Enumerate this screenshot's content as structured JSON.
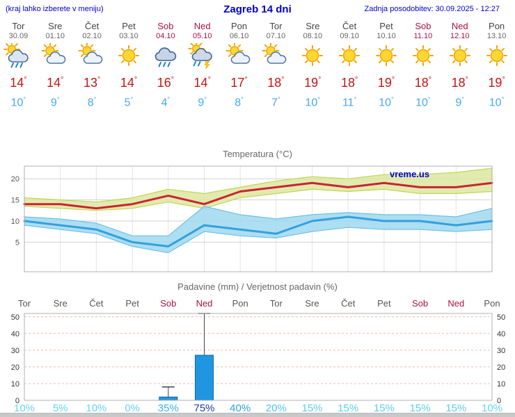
{
  "header": {
    "menu_note": "(kraj lahko izberete v meniju)",
    "title": "Zagreb 14 dni",
    "last_update": "Zadnja posodobitev: 30.09.2025 - 12:27"
  },
  "degree_symbol": "°",
  "colors": {
    "link_blue": "#0000cc",
    "weekday_text": "#555555",
    "weekend_red": "#aa1144",
    "high_temp_red": "#cc1111",
    "low_temp_blue": "#44a8f5",
    "max_line": "#cc2233",
    "min_line": "#33a0e0",
    "max_band_fill": "#dde8a0",
    "max_band_edge": "#c3d455",
    "min_band_fill": "#9fd8f0",
    "min_band_edge": "#6bc0e8",
    "bar_fill": "#2196e0",
    "bar_stroke": "#1565a8",
    "grid_pink": "#f0b6b6"
  },
  "days": [
    {
      "name": "Tor",
      "date": "30.09",
      "weekend": false,
      "icon": "cloud-rain-sun",
      "high": 14,
      "low": 10
    },
    {
      "name": "Sre",
      "date": "01.10",
      "weekend": false,
      "icon": "sun-cloud",
      "high": 14,
      "low": 9
    },
    {
      "name": "Čet",
      "date": "02.10",
      "weekend": false,
      "icon": "sun-cloud",
      "high": 13,
      "low": 8
    },
    {
      "name": "Pet",
      "date": "03.10",
      "weekend": false,
      "icon": "sunny",
      "high": 14,
      "low": 5
    },
    {
      "name": "Sob",
      "date": "04.10",
      "weekend": true,
      "icon": "cloud-rain",
      "high": 16,
      "low": 4
    },
    {
      "name": "Ned",
      "date": "05.10",
      "weekend": true,
      "icon": "cloud-rain-lightning-sun",
      "high": 14,
      "low": 9
    },
    {
      "name": "Pon",
      "date": "06.10",
      "weekend": false,
      "icon": "sun-cloud",
      "high": 17,
      "low": 8
    },
    {
      "name": "Tor",
      "date": "07.10",
      "weekend": false,
      "icon": "sun-cloud",
      "high": 18,
      "low": 7
    },
    {
      "name": "Sre",
      "date": "08.10",
      "weekend": false,
      "icon": "sunny",
      "high": 19,
      "low": 10
    },
    {
      "name": "Čet",
      "date": "09.10",
      "weekend": false,
      "icon": "sunny",
      "high": 18,
      "low": 11
    },
    {
      "name": "Pet",
      "date": "10.10",
      "weekend": false,
      "icon": "sunny",
      "high": 19,
      "low": 10
    },
    {
      "name": "Sob",
      "date": "11.10",
      "weekend": true,
      "icon": "sunny",
      "high": 18,
      "low": 10
    },
    {
      "name": "Ned",
      "date": "12.10",
      "weekend": true,
      "icon": "sunny",
      "high": 18,
      "low": 9
    },
    {
      "name": "Pon",
      "date": "13.10",
      "weekend": false,
      "icon": "sunny",
      "high": 19,
      "low": 10
    }
  ],
  "chart_data": [
    {
      "type": "line",
      "title": "Temperatura (°C)",
      "watermark": "vreme.us",
      "x": [
        "Tor 30.09",
        "Sre 01.10",
        "Čet 02.10",
        "Pet 03.10",
        "Sob 04.10",
        "Ned 05.10",
        "Pon 06.10",
        "Tor 07.10",
        "Sre 08.10",
        "Čet 09.10",
        "Pet 10.10",
        "Sob 11.10",
        "Ned 12.10",
        "Pon 13.10"
      ],
      "ylim": [
        -2,
        23
      ],
      "yticks": [
        5,
        10,
        15,
        20
      ],
      "grid": true,
      "series": [
        {
          "name": "max-temp",
          "values": [
            14,
            14,
            13,
            14,
            16,
            14,
            17,
            18,
            19,
            18,
            19,
            18,
            18,
            19
          ]
        },
        {
          "name": "min-temp",
          "values": [
            10,
            9,
            8,
            5,
            4,
            9,
            8,
            7,
            10,
            11,
            10,
            10,
            9,
            10
          ]
        },
        {
          "name": "max-band-upper",
          "values": [
            15.5,
            15,
            14.5,
            15.5,
            17.5,
            16.5,
            18,
            19.5,
            20.5,
            20,
            21,
            21,
            21.5,
            22.5
          ]
        },
        {
          "name": "max-band-lower",
          "values": [
            13.5,
            13,
            12.5,
            13,
            14.5,
            13,
            15.5,
            16.5,
            17.5,
            17,
            17.5,
            16.5,
            16.5,
            17
          ]
        },
        {
          "name": "min-band-upper",
          "values": [
            11,
            10.5,
            9.5,
            6.5,
            6.5,
            13.5,
            11.5,
            10.5,
            11.5,
            12,
            11.5,
            11.5,
            11,
            13
          ]
        },
        {
          "name": "min-band-lower",
          "values": [
            9,
            8,
            7,
            4,
            2.5,
            7.5,
            6.5,
            6,
            7.5,
            8.5,
            8,
            8,
            7.5,
            8
          ]
        }
      ]
    },
    {
      "type": "bar",
      "title": "Padavine (mm) / Verjetnost padavin (%)",
      "categories": [
        "Tor",
        "Sre",
        "Čet",
        "Pet",
        "Sob",
        "Ned",
        "Pon",
        "Tor",
        "Sre",
        "Čet",
        "Pet",
        "Sob",
        "Ned",
        "Pon"
      ],
      "values": [
        0,
        0,
        0,
        0,
        2,
        27,
        0,
        0,
        0,
        0,
        0,
        0,
        0,
        0
      ],
      "whisker_max": [
        0,
        0,
        0,
        0,
        8,
        52,
        0,
        0,
        0,
        0,
        0,
        0,
        0,
        0
      ],
      "ylim": [
        0,
        52
      ],
      "yticks": [
        0,
        10,
        20,
        30,
        40,
        50
      ],
      "probabilities": [
        "10%",
        "5%",
        "10%",
        "0%",
        "35%",
        "75%",
        "40%",
        "20%",
        "15%",
        "15%",
        "15%",
        "15%",
        "15%",
        "10%"
      ],
      "prob_colors": [
        "#63d6f2",
        "#63d6f2",
        "#63d6f2",
        "#63d6f2",
        "#35b1e8",
        "#1b3fa8",
        "#2f9fd8",
        "#4cc6ee",
        "#58cff0",
        "#58cff0",
        "#58cff0",
        "#58cff0",
        "#58cff0",
        "#63d6f2"
      ]
    }
  ]
}
